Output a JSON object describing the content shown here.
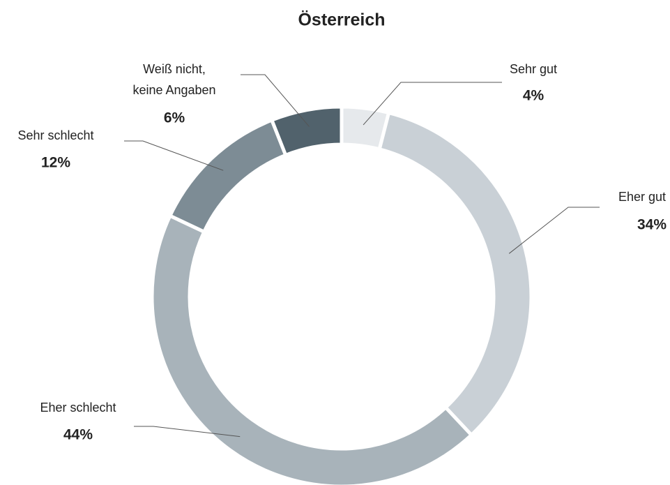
{
  "chart_data": {
    "type": "donut",
    "title": "Österreich",
    "categories": [
      "Sehr gut",
      "Eher gut",
      "Eher schlecht",
      "Sehr schlecht",
      "Weiß nicht,\nkeine Angaben"
    ],
    "values": [
      4,
      34,
      44,
      12,
      6
    ],
    "value_labels": [
      "4%",
      "34%",
      "44%",
      "12%",
      "6%"
    ],
    "colors": [
      "#e6e9ec",
      "#c9d0d6",
      "#a8b3ba",
      "#7d8c95",
      "#51626c"
    ]
  }
}
